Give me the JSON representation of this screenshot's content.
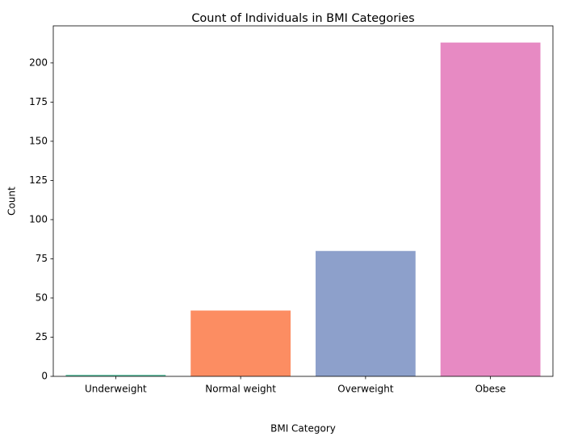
{
  "chart_data": {
    "type": "bar",
    "title": "Count of Individuals in BMI Categories",
    "xlabel": "BMI Category",
    "ylabel": "Count",
    "categories": [
      "Underweight",
      "Normal weight",
      "Overweight",
      "Obese"
    ],
    "values": [
      1,
      42,
      80,
      213
    ],
    "ylim": [
      0,
      223.65
    ],
    "yticks": [
      0,
      25,
      50,
      75,
      100,
      125,
      150,
      175,
      200
    ],
    "grid": false,
    "legend": "none",
    "colors": [
      "#66c2a5",
      "#fc8d62",
      "#8da0cb",
      "#e78ac3"
    ]
  }
}
